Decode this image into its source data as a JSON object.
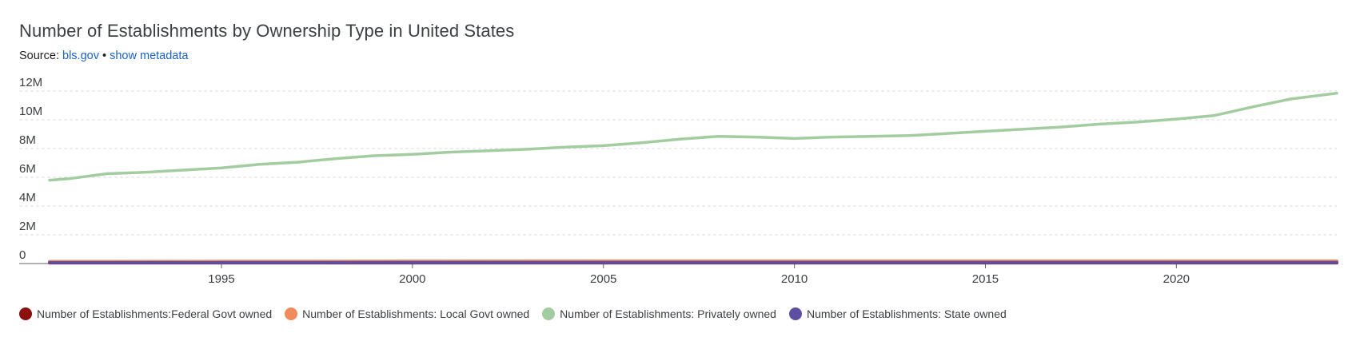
{
  "title": "Number of Establishments by Ownership Type in United States",
  "source": {
    "prefix": "Source:",
    "link_label": "bls.gov",
    "separator": "•",
    "metadata_label": "show metadata"
  },
  "chart_data": {
    "type": "line",
    "title": "Number of Establishments by Ownership Type in United States",
    "xlabel": "",
    "ylabel": "",
    "xlim": [
      1990.5,
      2024.2
    ],
    "ylim": [
      0,
      12500000
    ],
    "y_ticks": [
      0,
      2000000,
      4000000,
      6000000,
      8000000,
      10000000,
      12000000
    ],
    "y_tick_labels": [
      "0",
      "2M",
      "4M",
      "6M",
      "8M",
      "10M",
      "12M"
    ],
    "x_ticks": [
      1995,
      2000,
      2005,
      2010,
      2015,
      2020
    ],
    "x_tick_labels": [
      "1995",
      "2000",
      "2005",
      "2010",
      "2015",
      "2020"
    ],
    "grid": true,
    "legend_position": "bottom",
    "series": [
      {
        "name": "Number of Establishments:Federal Govt owned",
        "color": "#8b0f0f",
        "x": [
          1990.5,
          1995,
          2000,
          2005,
          2010,
          2015,
          2020,
          2024.2
        ],
        "y": [
          50000,
          50000,
          50000,
          50000,
          50000,
          50000,
          50000,
          50000
        ]
      },
      {
        "name": "Number of Establishments: Local Govt owned",
        "color": "#f28b5c",
        "x": [
          1990.5,
          1995,
          2000,
          2005,
          2010,
          2015,
          2020,
          2024.2
        ],
        "y": [
          140000,
          150000,
          160000,
          170000,
          175000,
          172000,
          170000,
          170000
        ]
      },
      {
        "name": "Number of Establishments: Privately owned",
        "color": "#a3cda1",
        "x": [
          1990.5,
          1991,
          1992,
          1993,
          1994,
          1995,
          1996,
          1997,
          1998,
          1999,
          2000,
          2001,
          2002,
          2003,
          2004,
          2005,
          2006,
          2007,
          2008,
          2009,
          2010,
          2011,
          2012,
          2013,
          2014,
          2015,
          2016,
          2017,
          2018,
          2019,
          2020,
          2021,
          2022,
          2023,
          2024.2
        ],
        "y": [
          5800000,
          5900000,
          6250000,
          6350000,
          6500000,
          6650000,
          6900000,
          7050000,
          7300000,
          7500000,
          7600000,
          7750000,
          7850000,
          7950000,
          8100000,
          8200000,
          8400000,
          8650000,
          8850000,
          8800000,
          8700000,
          8800000,
          8850000,
          8900000,
          9050000,
          9200000,
          9350000,
          9500000,
          9700000,
          9850000,
          10050000,
          10300000,
          10900000,
          11450000,
          11850000
        ]
      },
      {
        "name": "Number of Establishments: State owned",
        "color": "#5e4fa2",
        "x": [
          1990.5,
          1995,
          2000,
          2005,
          2010,
          2015,
          2020,
          2024.2
        ],
        "y": [
          60000,
          62000,
          64000,
          66000,
          68000,
          68000,
          68000,
          68000
        ]
      }
    ]
  }
}
